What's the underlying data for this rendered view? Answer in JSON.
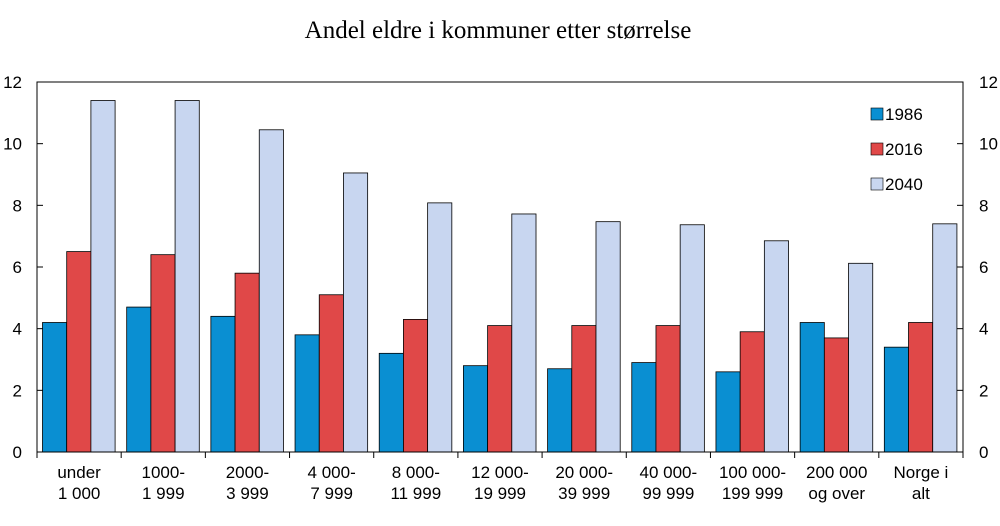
{
  "chart_data": {
    "type": "bar",
    "title": "Andel eldre i kommuner etter størrelse",
    "categories": [
      [
        "under",
        "1 000"
      ],
      [
        "1000-",
        "1 999"
      ],
      [
        "2000-",
        "3 999"
      ],
      [
        "4 000-",
        "7 999"
      ],
      [
        "8 000-",
        "11 999"
      ],
      [
        "12 000-",
        "19 999"
      ],
      [
        "20 000-",
        "39 999"
      ],
      [
        "40 000-",
        "99 999"
      ],
      [
        "100 000-",
        "199 999"
      ],
      [
        "200 000",
        "og over"
      ],
      [
        "Norge i",
        "alt"
      ]
    ],
    "series": [
      {
        "name": "1986",
        "color": "#0a8fd2",
        "values": [
          4.2,
          4.7,
          4.4,
          3.8,
          3.2,
          2.8,
          2.7,
          2.9,
          2.6,
          4.2,
          3.4
        ]
      },
      {
        "name": "2016",
        "color": "#e04848",
        "values": [
          6.5,
          6.4,
          5.8,
          5.1,
          4.3,
          4.1,
          4.1,
          4.1,
          3.9,
          3.7,
          4.2
        ]
      },
      {
        "name": "2040",
        "color": "#c8d6f0",
        "values": [
          11.4,
          11.4,
          10.45,
          9.05,
          8.08,
          7.72,
          7.47,
          7.37,
          6.85,
          6.12,
          7.4
        ]
      }
    ],
    "ylim": [
      0,
      12
    ],
    "yticks": [
      0,
      2,
      4,
      6,
      8,
      10,
      12
    ],
    "legend_position": "top-right",
    "grid": false,
    "secondary_y_axis": true
  }
}
